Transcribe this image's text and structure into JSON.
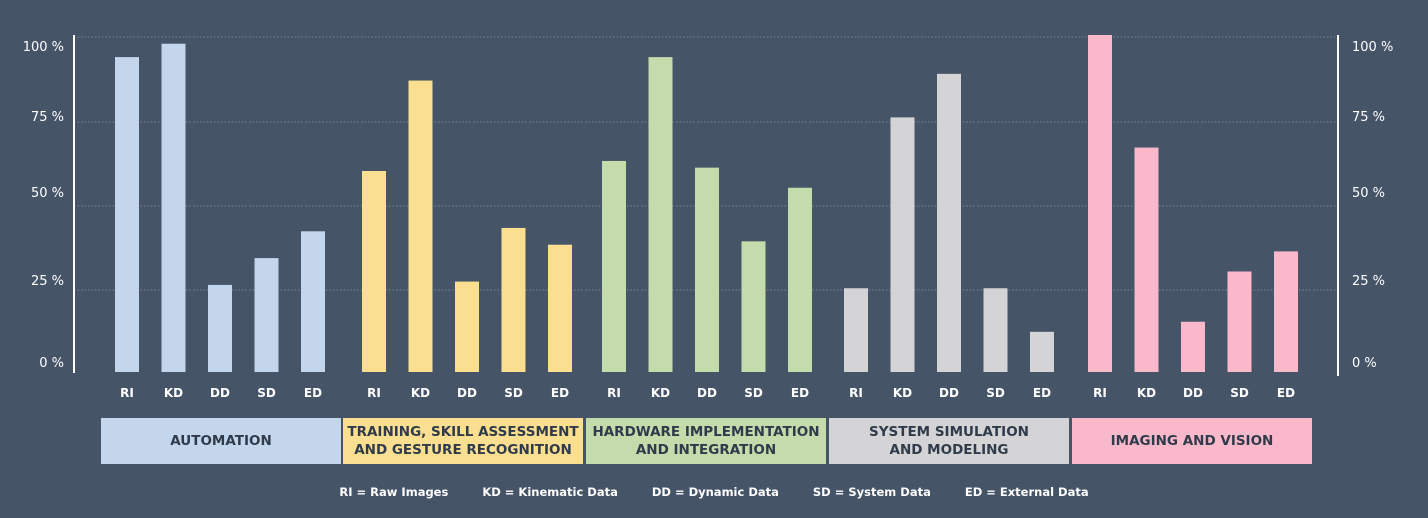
{
  "chart_data": {
    "type": "bar",
    "y_ticks": [
      "0 %",
      "25 %",
      "50 %",
      "75 %",
      "100 %"
    ],
    "ylim": [
      0,
      100
    ],
    "categories": [
      "RI",
      "KD",
      "DD",
      "SD",
      "ED"
    ],
    "groups": [
      {
        "name": "AUTOMATION",
        "color": "#c3d6ec",
        "values": [
          94,
          98,
          26,
          34,
          42
        ]
      },
      {
        "name": "TRAINING, SKILL ASSESSMENT AND GESTURE RECOGNITION",
        "label_lines": [
          "TRAINING, SKILL ASSESSMENT",
          "AND GESTURE RECOGNITION"
        ],
        "color": "#f9df8f",
        "values": [
          60,
          87,
          27,
          43,
          38
        ]
      },
      {
        "name": "HARDWARE IMPLEMENTATION AND INTEGRATION",
        "label_lines": [
          "HARDWARE IMPLEMENTATION",
          "AND INTEGRATION"
        ],
        "color": "#c4dbac",
        "values": [
          63,
          94,
          61,
          39,
          55
        ]
      },
      {
        "name": "SYSTEM SIMULATION AND MODELING",
        "label_lines": [
          "SYSTEM SIMULATION",
          "AND MODELING"
        ],
        "color": "#d4d4d7",
        "values": [
          25,
          76,
          89,
          25,
          12
        ]
      },
      {
        "name": "IMAGING AND VISION",
        "color": "#f9b9cb",
        "values": [
          101,
          67,
          15,
          30,
          36
        ]
      }
    ],
    "legend": [
      "RI = Raw Images",
      "KD = Kinematic Data",
      "DD = Dynamic Data",
      "SD = System Data",
      "ED = External Data"
    ],
    "grid": true
  }
}
